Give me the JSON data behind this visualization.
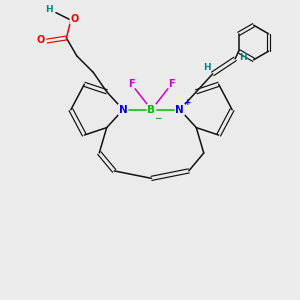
{
  "background_color": "#ebebeb",
  "fig_size": [
    3.0,
    3.0
  ],
  "dpi": 100,
  "atom_colors": {
    "N": "#0000ee",
    "B": "#00bb00",
    "F": "#cc00cc",
    "O": "#ee0000",
    "C": "#111111",
    "H": "#008888"
  }
}
